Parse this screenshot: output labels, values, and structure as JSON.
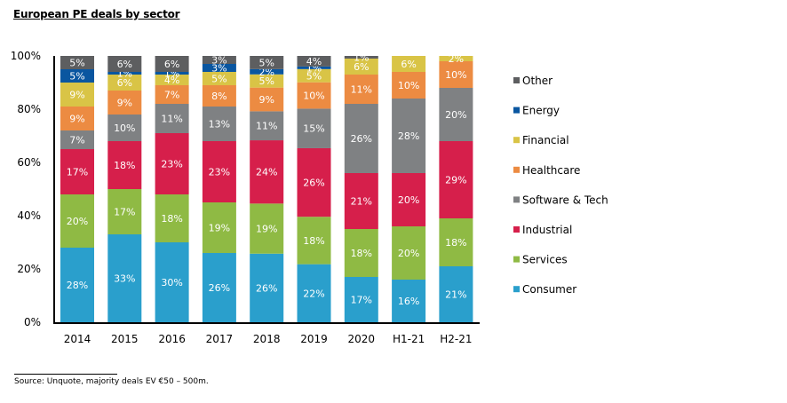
{
  "title": "European PE deals by sector",
  "source": "Source:  Unquote, majority deals EV €50 – 500m.",
  "chart_data": {
    "type": "bar",
    "stacked": true,
    "normalized": true,
    "title": "European PE deals by sector",
    "xlabel": "",
    "ylabel": "",
    "ylim": [
      0,
      100
    ],
    "yticks": [
      "0%",
      "20%",
      "40%",
      "60%",
      "80%",
      "100%"
    ],
    "ytick_values": [
      0,
      20,
      40,
      60,
      80,
      100
    ],
    "grid": false,
    "legend_position": "right",
    "categories": [
      "2014",
      "2015",
      "2016",
      "2017",
      "2018",
      "2019",
      "2020",
      "H1-21",
      "H2-21"
    ],
    "series": [
      {
        "name": "Consumer",
        "color": "#2a9fcc",
        "values": [
          28,
          33,
          30,
          26,
          26,
          22,
          17,
          16,
          21
        ]
      },
      {
        "name": "Services",
        "color": "#8fba44",
        "values": [
          20,
          17,
          18,
          19,
          19,
          18,
          18,
          20,
          18
        ]
      },
      {
        "name": "Industrial",
        "color": "#d61f4b",
        "values": [
          17,
          18,
          23,
          23,
          24,
          26,
          21,
          20,
          29
        ]
      },
      {
        "name": "Software & Tech",
        "color": "#7f8183",
        "values": [
          7,
          10,
          11,
          13,
          11,
          15,
          26,
          28,
          20
        ]
      },
      {
        "name": "Healthcare",
        "color": "#ec8b42",
        "values": [
          9,
          9,
          7,
          8,
          9,
          10,
          11,
          10,
          10
        ]
      },
      {
        "name": "Financial",
        "color": "#d9c446",
        "values": [
          9,
          6,
          4,
          5,
          5,
          5,
          6,
          6,
          2
        ]
      },
      {
        "name": "Energy",
        "color": "#0a56a0",
        "values": [
          5,
          1,
          1,
          3,
          2,
          1,
          0,
          0,
          0
        ]
      },
      {
        "name": "Other",
        "color": "#5d5e60",
        "values": [
          5,
          6,
          6,
          3,
          5,
          4,
          1,
          0,
          0
        ]
      }
    ],
    "legend_order": [
      "Other",
      "Energy",
      "Financial",
      "Healthcare",
      "Software & Tech",
      "Industrial",
      "Services",
      "Consumer"
    ]
  }
}
